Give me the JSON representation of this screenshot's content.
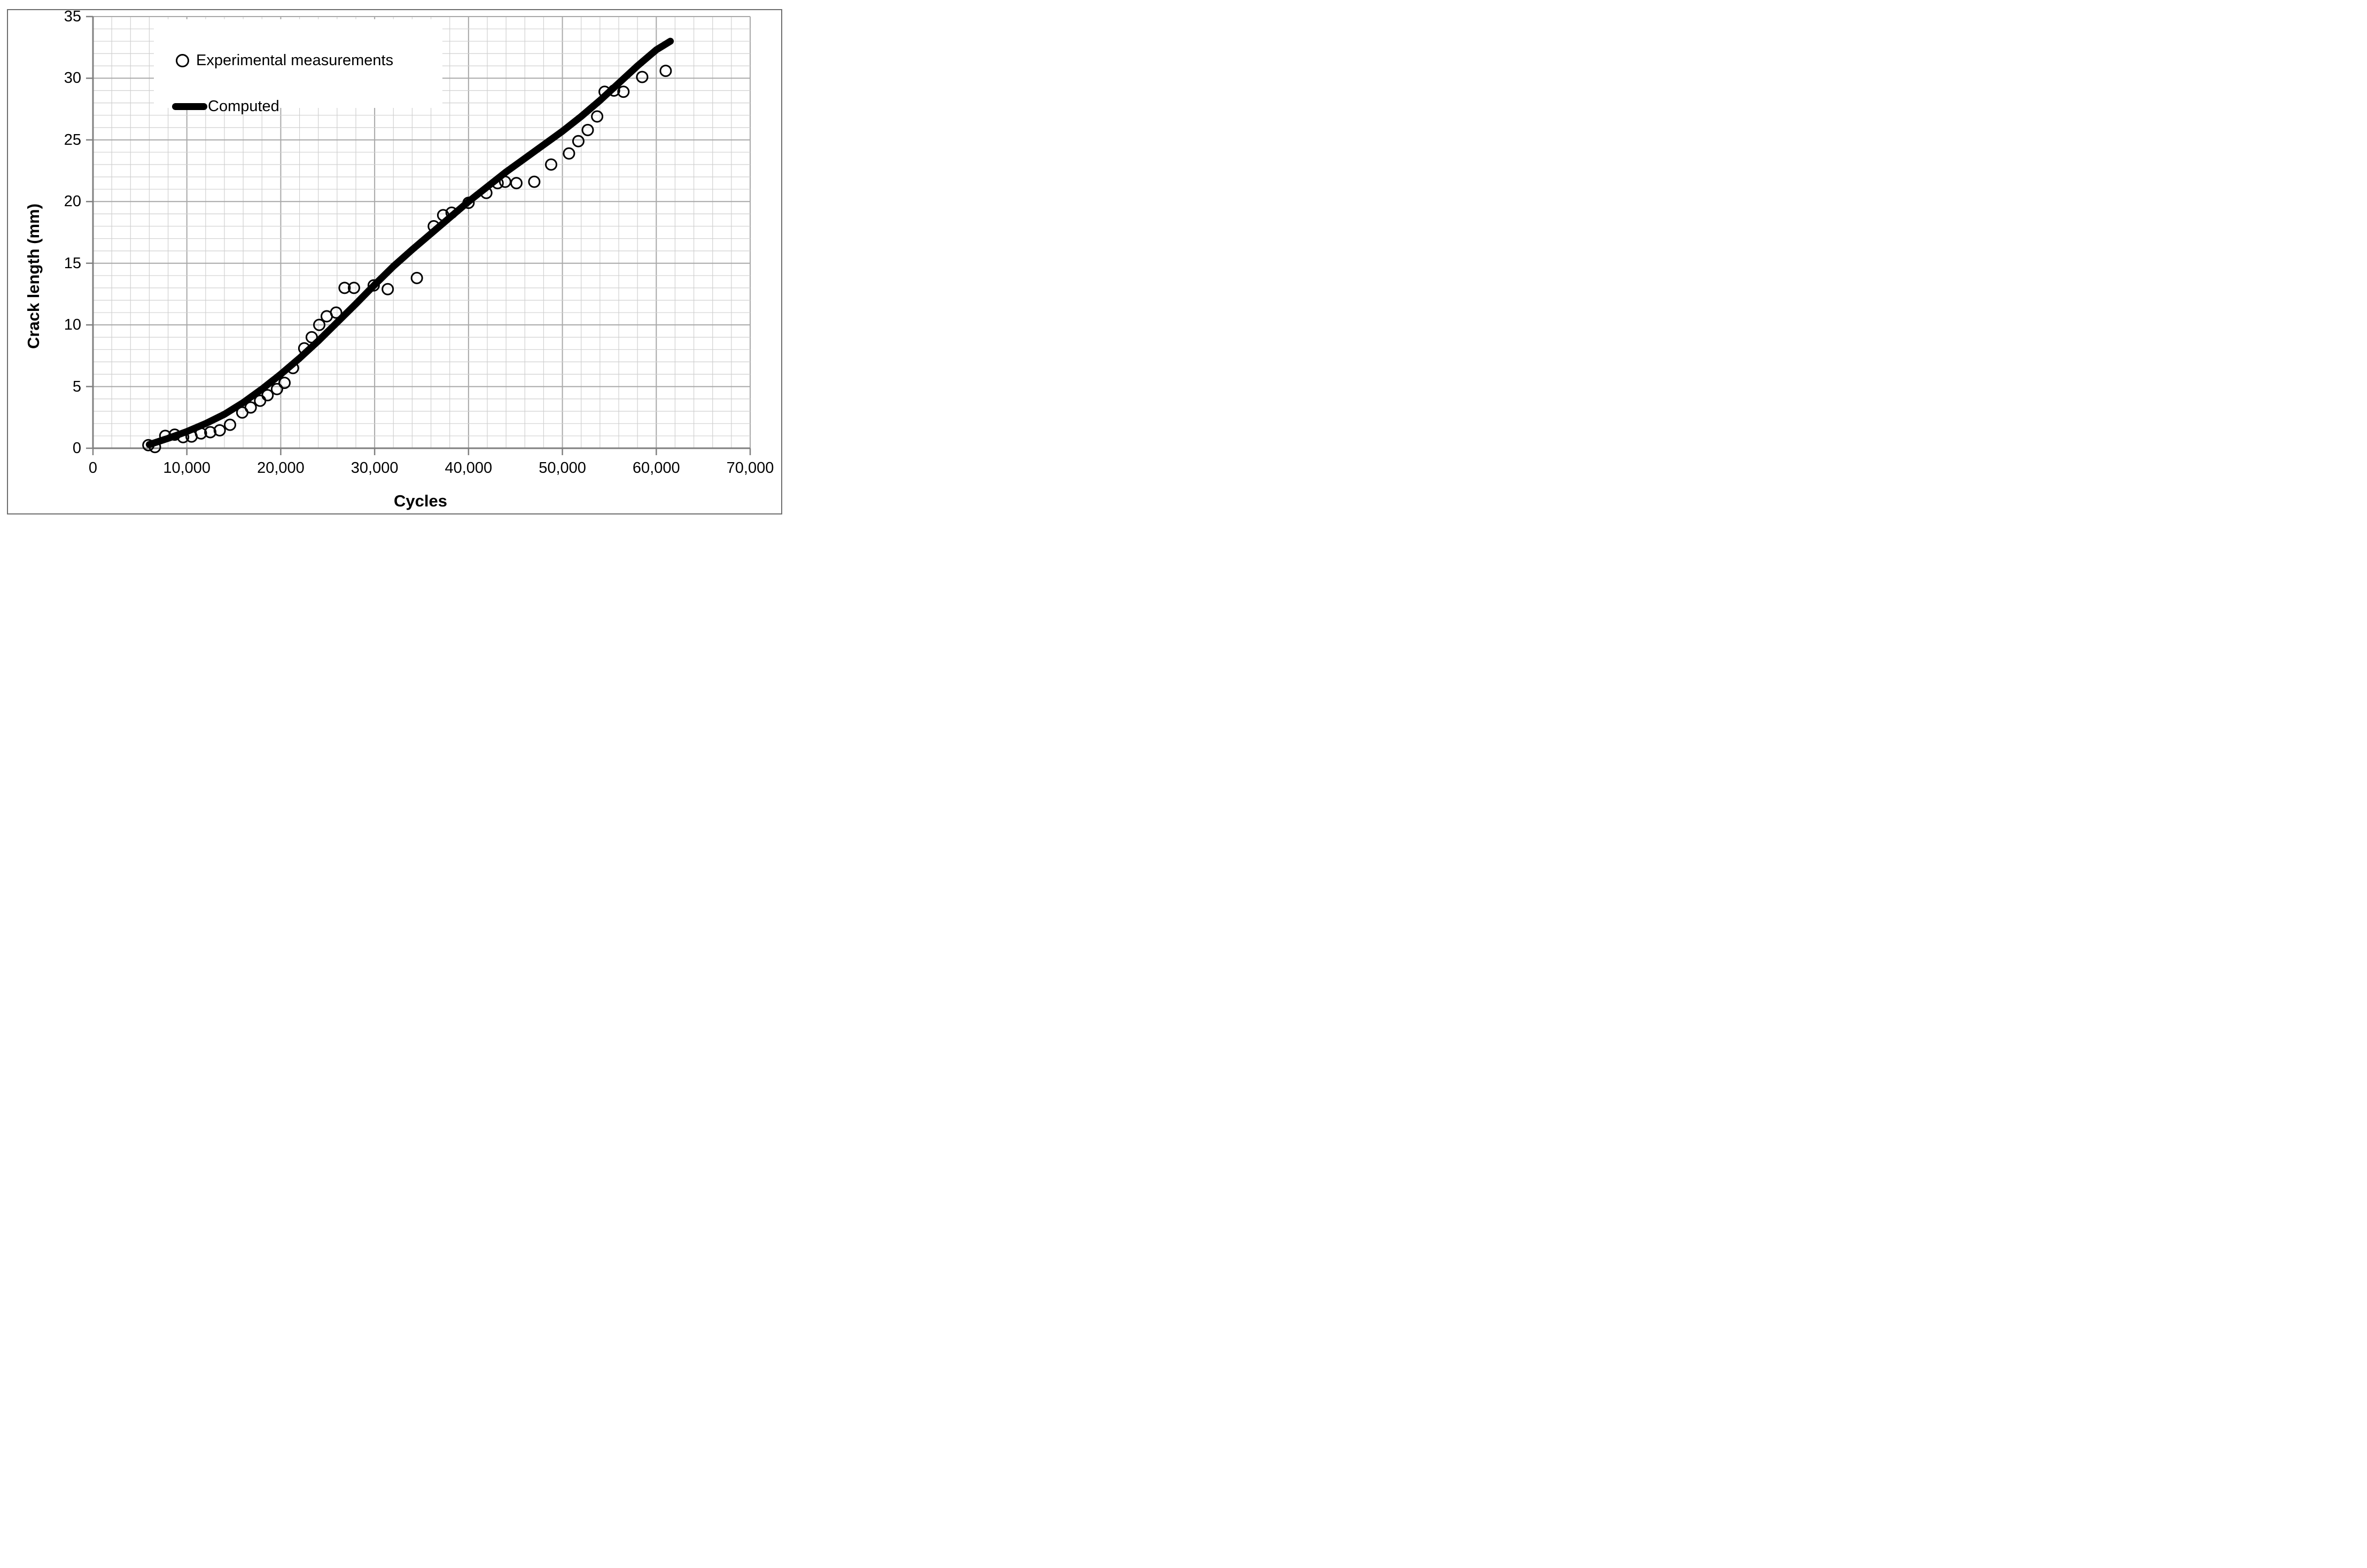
{
  "axes": {
    "x": {
      "title": "Cycles",
      "min": 0,
      "max": 70000,
      "major_step": 10000,
      "minor_step": 2000,
      "tick_labels": [
        "0",
        "10,000",
        "20,000",
        "30,000",
        "40,000",
        "50,000",
        "60,000",
        "70,000"
      ]
    },
    "y": {
      "title": "Crack length (mm)",
      "min": 0,
      "max": 35,
      "major_step": 5,
      "minor_step": 1,
      "tick_labels": [
        "0",
        "5",
        "10",
        "15",
        "20",
        "25",
        "30",
        "35"
      ]
    }
  },
  "legend": {
    "experimental_label": "Experimental measurements",
    "computed_label": "Computed"
  },
  "colors": {
    "minor_grid": "#d0d0d0",
    "major_grid": "#a8a8a8",
    "axis_line": "#7f7f7f",
    "data": "#000000",
    "frame_border": "#6e6e6e"
  },
  "chart_data": {
    "type": "scatter",
    "title": "",
    "xlabel": "Cycles",
    "ylabel": "Crack length (mm)",
    "xlim": [
      0,
      70000
    ],
    "ylim": [
      0,
      35
    ],
    "grid": "minor and major, light gray",
    "legend_position": "inside top-left",
    "series": [
      {
        "name": "Experimental measurements",
        "type": "scatter",
        "marker": "open-circle",
        "color": "#000000",
        "points": [
          [
            5900,
            0.25
          ],
          [
            6600,
            0.1
          ],
          [
            7700,
            1.0
          ],
          [
            8700,
            1.1
          ],
          [
            9600,
            0.9
          ],
          [
            10500,
            0.95
          ],
          [
            11500,
            1.2
          ],
          [
            12500,
            1.3
          ],
          [
            13500,
            1.45
          ],
          [
            14600,
            1.9
          ],
          [
            15900,
            2.9
          ],
          [
            16800,
            3.3
          ],
          [
            17800,
            3.85
          ],
          [
            18600,
            4.3
          ],
          [
            19600,
            4.8
          ],
          [
            20400,
            5.3
          ],
          [
            21300,
            6.5
          ],
          [
            22500,
            8.1
          ],
          [
            23300,
            9.0
          ],
          [
            24100,
            10.0
          ],
          [
            24900,
            10.7
          ],
          [
            25900,
            11.0
          ],
          [
            26800,
            13.0
          ],
          [
            27800,
            13.0
          ],
          [
            29900,
            13.2
          ],
          [
            31400,
            12.9
          ],
          [
            34500,
            13.8
          ],
          [
            36300,
            18.0
          ],
          [
            37300,
            18.9
          ],
          [
            38200,
            19.1
          ],
          [
            40000,
            19.9
          ],
          [
            41900,
            20.7
          ],
          [
            43100,
            21.5
          ],
          [
            43900,
            21.6
          ],
          [
            45100,
            21.5
          ],
          [
            47000,
            21.6
          ],
          [
            48800,
            23.0
          ],
          [
            50700,
            23.9
          ],
          [
            51700,
            24.9
          ],
          [
            52700,
            25.8
          ],
          [
            53700,
            26.9
          ],
          [
            54500,
            28.9
          ],
          [
            55500,
            29.0
          ],
          [
            56500,
            28.9
          ],
          [
            58500,
            30.1
          ],
          [
            61000,
            30.6
          ]
        ]
      },
      {
        "name": "Computed",
        "type": "line",
        "color": "#000000",
        "points": [
          [
            6000,
            0.3
          ],
          [
            8000,
            0.8
          ],
          [
            10000,
            1.35
          ],
          [
            12000,
            2.0
          ],
          [
            14000,
            2.75
          ],
          [
            16000,
            3.7
          ],
          [
            18000,
            4.8
          ],
          [
            20000,
            6.0
          ],
          [
            22000,
            7.3
          ],
          [
            24000,
            8.7
          ],
          [
            26000,
            10.2
          ],
          [
            28000,
            11.7
          ],
          [
            30000,
            13.25
          ],
          [
            32000,
            14.75
          ],
          [
            34000,
            16.1
          ],
          [
            36000,
            17.4
          ],
          [
            38000,
            18.7
          ],
          [
            40000,
            20.0
          ],
          [
            42000,
            21.2
          ],
          [
            44000,
            22.4
          ],
          [
            46000,
            23.5
          ],
          [
            48000,
            24.6
          ],
          [
            50000,
            25.7
          ],
          [
            52000,
            26.9
          ],
          [
            54000,
            28.2
          ],
          [
            56000,
            29.6
          ],
          [
            58000,
            31.0
          ],
          [
            60000,
            32.3
          ],
          [
            61500,
            33.0
          ]
        ]
      }
    ]
  }
}
